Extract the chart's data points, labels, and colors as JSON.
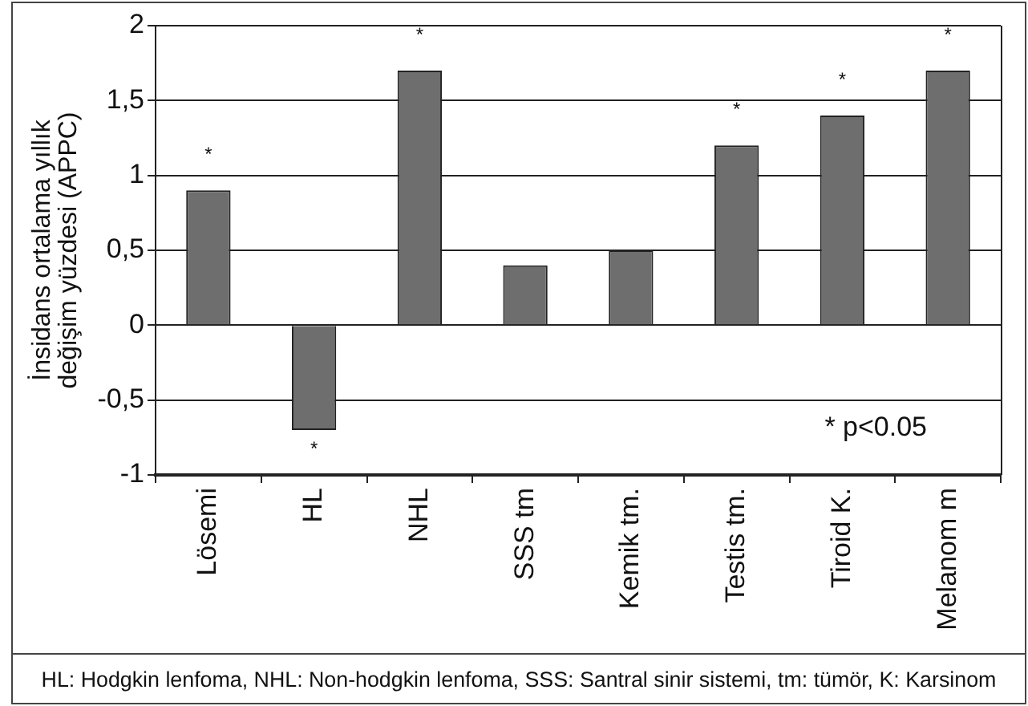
{
  "chart_data": {
    "type": "bar",
    "ylabel": "İnsidans ortalama yıllık değişim yüzdesi (APPC)",
    "categories": [
      "Lösemi",
      "HL",
      "NHL",
      "SSS tm",
      "Kemik tm.",
      "Testis tm.",
      "Tiroid K.",
      "Melanom m"
    ],
    "values": [
      0.9,
      -0.7,
      1.7,
      0.4,
      0.5,
      1.2,
      1.4,
      1.7
    ],
    "color": "#6e6e6e",
    "ylim": [
      -1,
      2
    ],
    "yticks": [
      {
        "value": -1,
        "label": "-1"
      },
      {
        "value": -0.5,
        "label": "-0,5"
      },
      {
        "value": 0,
        "label": "0"
      },
      {
        "value": 0.5,
        "label": "0,5"
      },
      {
        "value": 1,
        "label": "1"
      },
      {
        "value": 1.5,
        "label": "1,5"
      },
      {
        "value": 2,
        "label": "2"
      }
    ],
    "grid": "y",
    "annotations": [
      {
        "text": "*",
        "x": "Lösemi",
        "y": 0.9
      },
      {
        "text": "*",
        "x": "HL",
        "y": -0.7
      },
      {
        "text": "*",
        "x": "NHL",
        "y": 1.7
      },
      {
        "text": "*",
        "x": "Testis tm.",
        "y": 1.2
      },
      {
        "text": "*",
        "x": "Tiroid K.",
        "y": 1.4
      },
      {
        "text": "*",
        "x": "Melanom m",
        "y": 1.7
      },
      "* p<0.05",
      "HL: Hodgkin lenfoma, NHL: Non-hodgkin lenfoma, SSS: Santral sinir sistemi, tm: tümör, K: Karsinom"
    ]
  }
}
